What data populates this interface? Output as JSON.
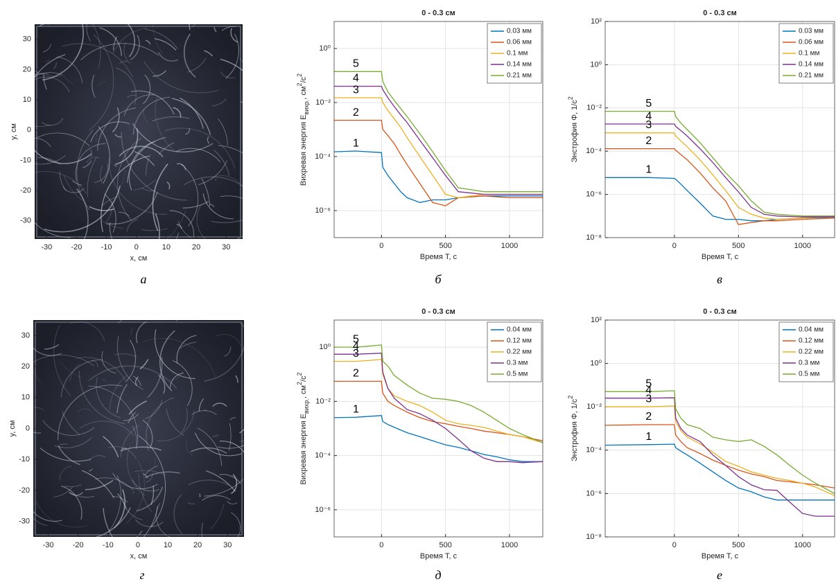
{
  "chart_data": [
    {
      "type": "image",
      "panel_label": "а",
      "xlabel": "x, см",
      "ylabel": "y, см",
      "xlim": [
        -34,
        35.5
      ],
      "ylim": [
        -36,
        35
      ],
      "xticks": [
        -30,
        -20,
        -10,
        0,
        10,
        20,
        30
      ],
      "yticks": [
        -30,
        -20,
        -10,
        0,
        10,
        20,
        30
      ]
    },
    {
      "type": "line",
      "panel_label": "б",
      "title": "0 - 0.3 см",
      "xlabel": "Время Т, с",
      "ylabel": [
        "Вихревая энергия E",
        "вихр.",
        ", см",
        "2",
        "/с",
        "2"
      ],
      "log_y": true,
      "grid": true,
      "legend": "northeast",
      "xlim": [
        -370,
        1260
      ],
      "xticks": [
        0,
        500,
        1000
      ],
      "ylim": [
        1e-07,
        10
      ],
      "yticks": [
        {
          "value": 1e-06,
          "label": "10⁻⁶"
        },
        {
          "value": 0.0001,
          "label": "10⁻⁴"
        },
        {
          "value": 0.01,
          "label": "10⁻²"
        },
        {
          "value": 1,
          "label": "10⁰"
        }
      ],
      "curve_labels": [
        "1",
        "2",
        "3",
        "4",
        "5"
      ],
      "x": [
        -370,
        -200,
        0,
        10,
        50,
        100,
        150,
        200,
        300,
        400,
        500,
        600,
        800,
        1000,
        1260
      ],
      "series": [
        {
          "name": "0.03 мм",
          "color": "#0072BD",
          "values": [
            0.00015,
            0.00016,
            0.00014,
            4e-05,
            2e-05,
            1e-05,
            5e-06,
            3e-06,
            2e-06,
            2.5e-06,
            2.5e-06,
            3e-06,
            3.5e-06,
            3.5e-06,
            3.5e-06
          ]
        },
        {
          "name": "0.06 мм",
          "color": "#D95319",
          "values": [
            0.0022,
            0.0022,
            0.0022,
            0.001,
            0.0006,
            0.0003,
            0.00012,
            5e-05,
            1e-05,
            2e-06,
            1.5e-06,
            3e-06,
            3.5e-06,
            3e-06,
            3e-06
          ]
        },
        {
          "name": "0.1 мм",
          "color": "#EDB120",
          "values": [
            0.015,
            0.015,
            0.015,
            0.01,
            0.005,
            0.0025,
            0.0012,
            0.0005,
            0.0001,
            2e-05,
            4e-06,
            3e-06,
            4e-06,
            4e-06,
            4e-06
          ]
        },
        {
          "name": "0.14 мм",
          "color": "#7E2F8E",
          "values": [
            0.04,
            0.04,
            0.04,
            0.03,
            0.015,
            0.007,
            0.0035,
            0.0018,
            0.0004,
            9e-05,
            2e-05,
            5e-06,
            4e-06,
            4e-06,
            4e-06
          ]
        },
        {
          "name": "0.21 мм",
          "color": "#77AC30",
          "values": [
            0.14,
            0.14,
            0.14,
            0.06,
            0.025,
            0.012,
            0.006,
            0.003,
            0.0007,
            0.00015,
            3e-05,
            7e-06,
            5e-06,
            5e-06,
            5e-06
          ]
        }
      ]
    },
    {
      "type": "line",
      "panel_label": "в",
      "title": "0 - 0.3 см",
      "xlabel": "Время Т, с",
      "ylabel": [
        "Энстрофия Φ, 1/с",
        "2"
      ],
      "log_y": true,
      "grid": true,
      "legend": "northeast",
      "xlim": [
        -540,
        1250
      ],
      "xticks": [
        0,
        500,
        1000
      ],
      "ylim": [
        1e-08,
        100
      ],
      "yticks": [
        {
          "value": 1e-08,
          "label": "10⁻⁸"
        },
        {
          "value": 1e-06,
          "label": "10⁻⁶"
        },
        {
          "value": 0.0001,
          "label": "10⁻⁴"
        },
        {
          "value": 0.01,
          "label": "10⁻²"
        },
        {
          "value": 1,
          "label": "10⁰"
        },
        {
          "value": 100,
          "label": "10²"
        }
      ],
      "curve_labels": [
        "1",
        "2",
        "3",
        "4",
        "5"
      ],
      "x": [
        -540,
        -200,
        0,
        10,
        50,
        100,
        200,
        300,
        400,
        500,
        600,
        700,
        800,
        1000,
        1250
      ],
      "series": [
        {
          "name": "0.03 мм",
          "color": "#0072BD",
          "values": [
            6e-06,
            6e-06,
            5.5e-06,
            5e-06,
            3e-06,
            1.5e-06,
            4e-07,
            1e-07,
            7e-08,
            7e-08,
            6e-08,
            6e-08,
            7e-08,
            8e-08,
            9e-08
          ]
        },
        {
          "name": "0.06 мм",
          "color": "#D95319",
          "values": [
            0.00013,
            0.00013,
            0.00013,
            0.00011,
            7e-05,
            4e-05,
            1e-05,
            2e-06,
            5e-07,
            4e-08,
            5e-08,
            6e-08,
            6e-08,
            7e-08,
            8e-08
          ]
        },
        {
          "name": "0.1 мм",
          "color": "#EDB120",
          "values": [
            0.0007,
            0.0007,
            0.0007,
            0.0005,
            0.0003,
            0.00016,
            4e-05,
            8e-06,
            1.5e-06,
            2.5e-07,
            1.2e-07,
            8e-08,
            7e-08,
            8e-08,
            1e-07
          ]
        },
        {
          "name": "0.14 мм",
          "color": "#7E2F8E",
          "values": [
            0.0018,
            0.0018,
            0.0018,
            0.0014,
            0.0009,
            0.0005,
            0.00013,
            3e-05,
            6e-06,
            1.3e-06,
            2.5e-07,
            1.2e-07,
            1e-07,
            9e-08,
            9e-08
          ]
        },
        {
          "name": "0.21 мм",
          "color": "#77AC30",
          "values": [
            0.007,
            0.007,
            0.007,
            0.004,
            0.002,
            0.001,
            0.00025,
            5e-05,
            1e-05,
            2.5e-06,
            5e-07,
            1.5e-07,
            1.2e-07,
            1e-07,
            1e-07
          ]
        }
      ]
    },
    {
      "type": "image",
      "panel_label": "г",
      "xlabel": "x, см",
      "ylabel": "y, см",
      "xlim": [
        -35,
        35.5
      ],
      "ylim": [
        -35,
        35
      ],
      "xticks": [
        -30,
        -20,
        -10,
        0,
        10,
        20,
        30
      ],
      "yticks": [
        -30,
        -20,
        -10,
        0,
        10,
        20,
        30
      ]
    },
    {
      "type": "line",
      "panel_label": "д",
      "title": "0 - 0.3 см",
      "xlabel": "Время Т, с",
      "ylabel": [
        "Вихревая энергия E",
        "вихр.",
        ", см",
        "2",
        "/с",
        "2"
      ],
      "log_y": true,
      "grid": true,
      "legend": "northeast",
      "xlim": [
        -370,
        1260
      ],
      "xticks": [
        0,
        500,
        1000
      ],
      "ylim": [
        1e-07,
        10
      ],
      "yticks": [
        {
          "value": 1e-06,
          "label": "10⁻⁶"
        },
        {
          "value": 0.0001,
          "label": "10⁻⁴"
        },
        {
          "value": 0.01,
          "label": "10⁻²"
        },
        {
          "value": 1,
          "label": "10⁰"
        }
      ],
      "curve_labels": [
        "1",
        "2",
        "3",
        "4",
        "5"
      ],
      "x": [
        -370,
        -200,
        0,
        10,
        50,
        100,
        200,
        300,
        400,
        500,
        600,
        700,
        800,
        900,
        1000,
        1100,
        1260
      ],
      "series": [
        {
          "name": "0.04 мм",
          "color": "#0072BD",
          "values": [
            0.0025,
            0.0026,
            0.003,
            0.0018,
            0.0014,
            0.0011,
            0.0007,
            0.0005,
            0.00035,
            0.00025,
            0.0002,
            0.00015,
            0.00011,
            9e-05,
            7e-05,
            6e-05,
            6e-05
          ]
        },
        {
          "name": "0.12 мм",
          "color": "#D95319",
          "values": [
            0.055,
            0.055,
            0.055,
            0.02,
            0.01,
            0.007,
            0.004,
            0.0025,
            0.0018,
            0.0015,
            0.0012,
            0.001,
            0.0008,
            0.0007,
            0.0006,
            0.0005,
            0.00035
          ]
        },
        {
          "name": "0.22 мм",
          "color": "#EDB120",
          "values": [
            0.3,
            0.3,
            0.35,
            0.1,
            0.03,
            0.016,
            0.01,
            0.007,
            0.004,
            0.002,
            0.0015,
            0.0013,
            0.0011,
            0.0008,
            0.0006,
            0.0005,
            0.0003
          ]
        },
        {
          "name": "0.3 мм",
          "color": "#7E2F8E",
          "values": [
            0.55,
            0.55,
            0.6,
            0.12,
            0.03,
            0.013,
            0.005,
            0.0035,
            0.002,
            0.001,
            0.0004,
            0.00015,
            8e-05,
            6e-05,
            6e-05,
            5.5e-05,
            6e-05
          ]
        },
        {
          "name": "0.5 мм",
          "color": "#77AC30",
          "values": [
            1,
            1,
            1.2,
            0.3,
            0.2,
            0.09,
            0.04,
            0.02,
            0.013,
            0.012,
            0.01,
            0.007,
            0.004,
            0.002,
            0.001,
            0.0006,
            0.0003
          ]
        }
      ]
    },
    {
      "type": "line",
      "panel_label": "е",
      "title": "0 - 0.3 см",
      "xlabel": "Время Т, с",
      "ylabel": [
        "Энстрофия Φ, 1/с",
        "2"
      ],
      "log_y": true,
      "grid": true,
      "legend": "northeast",
      "xlim": [
        -540,
        1250
      ],
      "xticks": [
        0,
        500,
        1000
      ],
      "ylim": [
        1e-08,
        100
      ],
      "yticks": [
        {
          "value": 1e-08,
          "label": "10⁻⁸"
        },
        {
          "value": 1e-06,
          "label": "10⁻⁶"
        },
        {
          "value": 0.0001,
          "label": "10⁻⁴"
        },
        {
          "value": 0.01,
          "label": "10⁻²"
        },
        {
          "value": 1,
          "label": "10⁰"
        },
        {
          "value": 100,
          "label": "10²"
        }
      ],
      "curve_labels": [
        "1",
        "2",
        "3",
        "4",
        "5"
      ],
      "x": [
        -540,
        -200,
        0,
        10,
        50,
        100,
        200,
        300,
        400,
        500,
        600,
        700,
        800,
        900,
        1000,
        1100,
        1250
      ],
      "series": [
        {
          "name": "0.04 мм",
          "color": "#0072BD",
          "values": [
            0.00017,
            0.00018,
            0.00019,
            0.00013,
            9e-05,
            6e-05,
            2.5e-05,
            1e-05,
            4e-06,
            1.8e-06,
            1.2e-06,
            7e-07,
            5e-07,
            5e-07,
            5e-07,
            5e-07,
            5e-07
          ]
        },
        {
          "name": "0.12 мм",
          "color": "#D95319",
          "values": [
            0.0014,
            0.0015,
            0.0015,
            0.0005,
            0.00025,
            0.00013,
            7e-05,
            3.5e-05,
            2e-05,
            1.2e-05,
            8e-06,
            6e-06,
            4e-06,
            3.5e-06,
            3e-06,
            2.5e-06,
            1.8e-06
          ]
        },
        {
          "name": "0.22 мм",
          "color": "#EDB120",
          "values": [
            0.01,
            0.01,
            0.011,
            0.002,
            0.0008,
            0.0004,
            0.0002,
            8e-05,
            3e-05,
            1.8e-05,
            1e-05,
            7e-06,
            5e-06,
            4e-06,
            3e-06,
            2e-06,
            8e-07
          ]
        },
        {
          "name": "0.3 мм",
          "color": "#7E2F8E",
          "values": [
            0.025,
            0.025,
            0.026,
            0.003,
            0.001,
            0.0005,
            0.00025,
            6e-05,
            2e-05,
            6e-06,
            2.5e-06,
            1.5e-06,
            1.4e-06,
            4e-07,
            1.2e-07,
            9e-08,
            9e-08
          ]
        },
        {
          "name": "0.5 мм",
          "color": "#77AC30",
          "values": [
            0.05,
            0.05,
            0.055,
            0.008,
            0.003,
            0.0015,
            0.001,
            0.0004,
            0.0003,
            0.00025,
            0.0003,
            0.00015,
            6e-05,
            2e-05,
            7e-06,
            3e-06,
            1e-06
          ]
        }
      ]
    }
  ]
}
